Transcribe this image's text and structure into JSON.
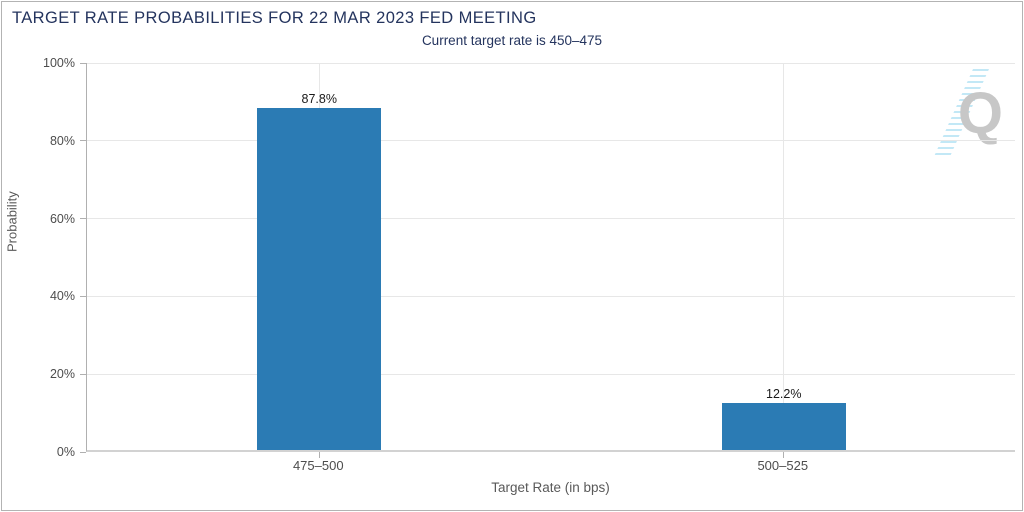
{
  "chart_data": {
    "type": "bar",
    "title": "TARGET RATE PROBABILITIES FOR 22 MAR 2023 FED MEETING",
    "subtitle": "Current target rate is 450–475",
    "xlabel": "Target Rate (in bps)",
    "ylabel": "Probability",
    "categories": [
      "475–500",
      "500–525"
    ],
    "values": [
      87.8,
      12.2
    ],
    "value_labels": [
      "87.8%",
      "12.2%"
    ],
    "ylim": [
      0,
      100
    ],
    "ytick_values": [
      0,
      20,
      40,
      60,
      80,
      100
    ],
    "ytick_labels": [
      "0%",
      "20%",
      "40%",
      "60%",
      "80%",
      "100%"
    ],
    "grid": "horizontal gridlines at y-ticks, vertical gridlines at bar centers",
    "legend": "none",
    "bar_color": "#2b7bb4",
    "title_color": "#24345e",
    "axis_label_color": "#595959",
    "gridline_color": "#e7e7e7"
  },
  "watermark": {
    "letter": "Q"
  }
}
